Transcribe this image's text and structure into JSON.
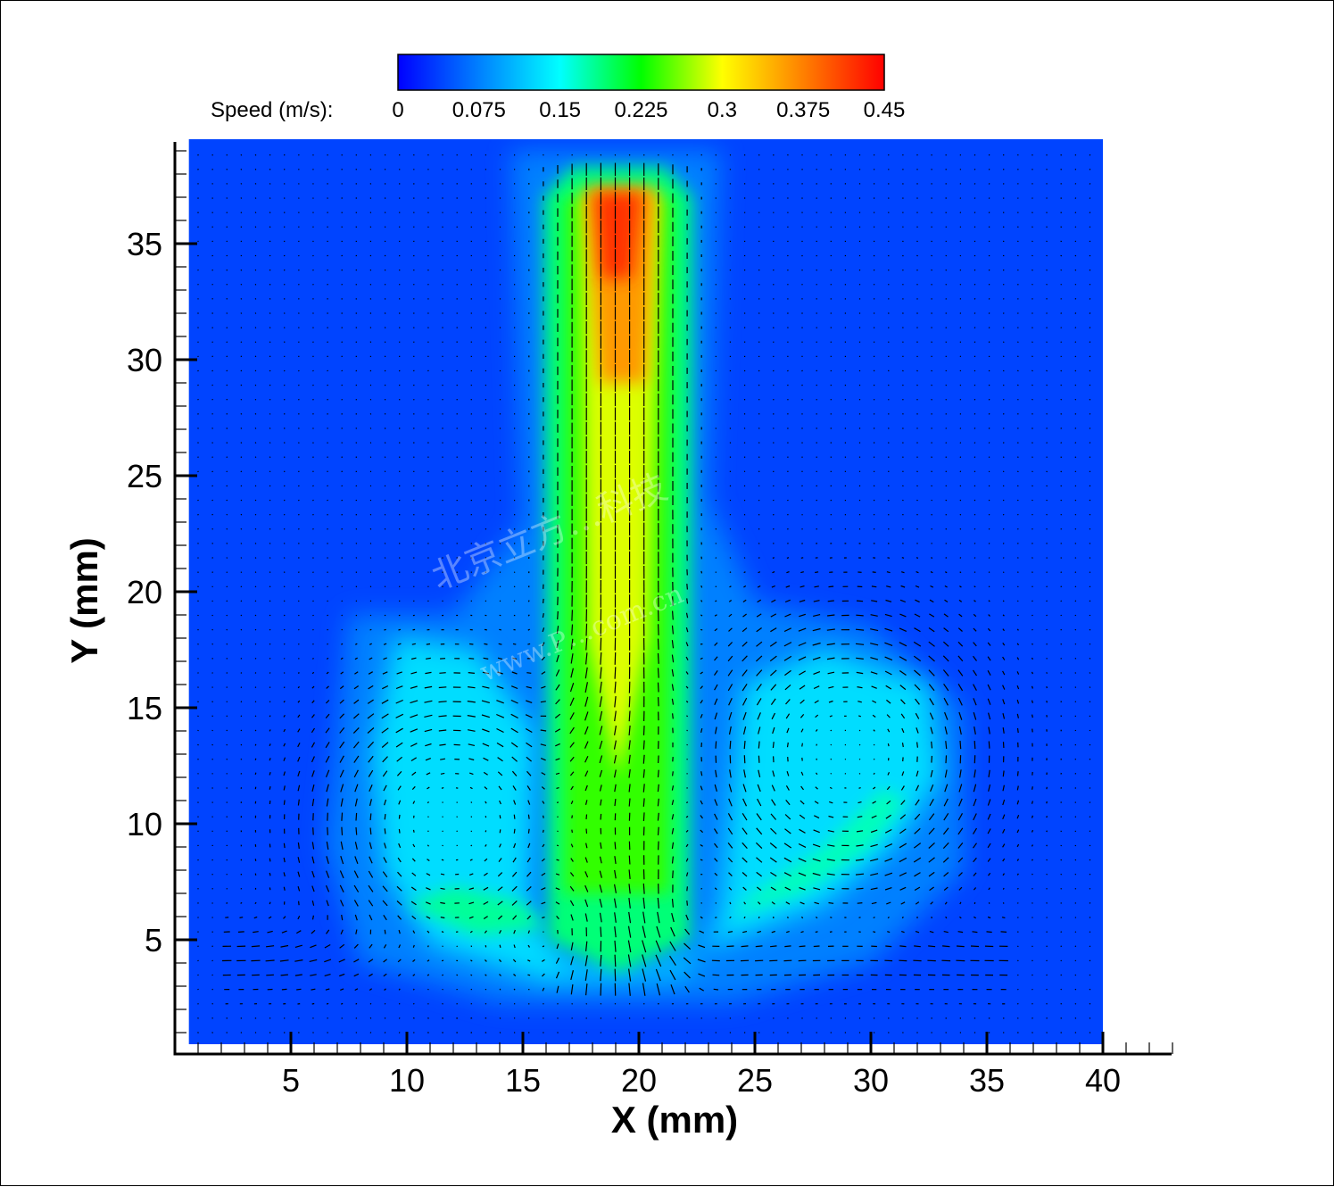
{
  "chart_data": {
    "type": "heatmap",
    "subtype": "vector-field contour (speed magnitude with velocity arrows)",
    "xlabel": "X (mm)",
    "ylabel": "Y (mm)",
    "xlim": [
      0,
      43
    ],
    "ylim": [
      0.5,
      39.5
    ],
    "x_ticks": [
      5,
      10,
      15,
      20,
      25,
      30,
      35,
      40
    ],
    "y_ticks": [
      5,
      10,
      15,
      20,
      25,
      30,
      35
    ],
    "field_extent": {
      "x": [
        0.6,
        40
      ],
      "y": [
        0.5,
        39.5
      ]
    },
    "colorbar": {
      "label": "Speed (m/s):",
      "min": 0,
      "max": 0.45,
      "ticks": [
        "0",
        "0.075",
        "0.15",
        "0.225",
        "0.3",
        "0.375",
        "0.45"
      ],
      "colormap": [
        "#0000ff",
        "#0080ff",
        "#00ffff",
        "#00ff00",
        "#ffff00",
        "#ff8000",
        "#ff0000"
      ]
    },
    "jet": {
      "x_center": 19.1,
      "x_half_width": 3.2,
      "y_top": 38.2,
      "y_bottom": 3.0,
      "peak_speed": 0.42,
      "peak_at": [
        19,
        35.5
      ],
      "direction": "downward"
    },
    "vortices": [
      {
        "name": "left recirculation",
        "center": [
          12,
          10
        ],
        "rotation": "counter-clockwise"
      },
      {
        "name": "right recirculation",
        "center": [
          29,
          13
        ],
        "rotation": "clockwise"
      }
    ],
    "background_speed": 0.04
  },
  "watermark": {
    "line1": "北京立方…科技",
    "line2": "www.P…com.cn"
  }
}
